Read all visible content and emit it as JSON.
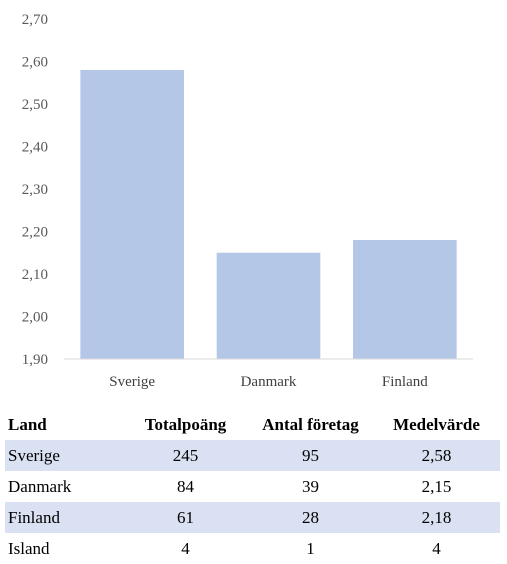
{
  "chart_data": {
    "type": "bar",
    "categories": [
      "Sverige",
      "Danmark",
      "Finland"
    ],
    "values": [
      2.58,
      2.15,
      2.18
    ],
    "ylim": [
      1.9,
      2.7
    ],
    "yticks": [
      "1,90",
      "2,00",
      "2,10",
      "2,20",
      "2,30",
      "2,40",
      "2,50",
      "2,60",
      "2,70"
    ],
    "title": "",
    "xlabel": "",
    "ylabel": "",
    "grid": false,
    "legend": "none",
    "bar_color": "#b4c7e7",
    "axis_color": "#d9d9d9"
  },
  "table": {
    "headers": [
      "Land",
      "Totalpoäng",
      "Antal företag",
      "Medelvärde"
    ],
    "rows": [
      [
        "Sverige",
        "245",
        "95",
        "2,58"
      ],
      [
        "Danmark",
        "84",
        "39",
        "2,15"
      ],
      [
        "Finland",
        "61",
        "28",
        "2,18"
      ],
      [
        "Island",
        "4",
        "1",
        "4"
      ]
    ],
    "row_shade_color": "#d9e1f2"
  }
}
